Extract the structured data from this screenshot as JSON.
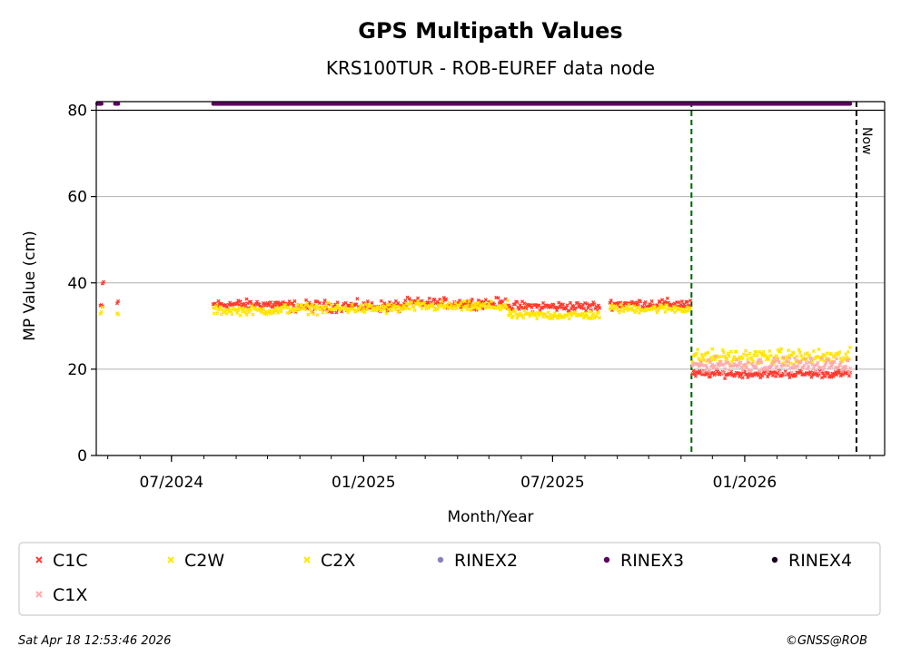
{
  "chart_data": {
    "type": "scatter",
    "title": "GPS Multipath Values",
    "subtitle": "KRS100TUR - ROB-EUREF data node",
    "xlabel": "Month/Year",
    "ylabel": "MP Value (cm)",
    "ylim": [
      0,
      82
    ],
    "xlim": [
      "2024-04-20",
      "2026-05-15"
    ],
    "y_ticks": [
      0,
      20,
      40,
      60,
      80
    ],
    "x_ticks": [
      {
        "date": "2024-07-01",
        "label": "07/2024"
      },
      {
        "date": "2025-01-01",
        "label": "01/2025"
      },
      {
        "date": "2025-07-01",
        "label": "07/2025"
      },
      {
        "date": "2026-01-01",
        "label": "01/2026"
      }
    ],
    "grid": "horizontal",
    "vlines": [
      {
        "date": "2025-11-11",
        "color": "#006400",
        "style": "dashed"
      },
      {
        "date": "2026-04-18",
        "color": "#000000",
        "style": "dashed",
        "label": "Now"
      }
    ],
    "series": [
      {
        "name": "C1C",
        "color": "#ff3b2f",
        "marker": "x",
        "segments": [
          {
            "start": "2024-04-26",
            "end": "2024-04-27",
            "mean": 39.8,
            "noise": 0.3
          },
          {
            "start": "2024-04-24",
            "end": "2024-04-26",
            "mean": 34.5,
            "noise": 0.6
          },
          {
            "start": "2024-05-10",
            "end": "2024-05-11",
            "mean": 35.5,
            "noise": 0.5
          },
          {
            "start": "2024-08-10",
            "end": "2024-10-15",
            "mean": 35.0,
            "noise": 0.7
          },
          {
            "start": "2024-10-15",
            "end": "2025-02-10",
            "mean": 34.6,
            "noise": 0.8
          },
          {
            "start": "2025-02-10",
            "end": "2025-05-20",
            "mean": 35.3,
            "noise": 0.7
          },
          {
            "start": "2025-05-20",
            "end": "2025-08-15",
            "mean": 34.5,
            "noise": 0.7
          },
          {
            "start": "2025-08-25",
            "end": "2025-11-10",
            "mean": 35.1,
            "noise": 0.7
          },
          {
            "start": "2025-11-12",
            "end": "2026-04-12",
            "mean": 18.9,
            "noise": 0.5
          }
        ]
      },
      {
        "name": "C2W",
        "color": "#ffe600",
        "marker": "x",
        "segments": [
          {
            "start": "2024-04-24",
            "end": "2024-04-26",
            "mean": 33.5,
            "noise": 0.8
          },
          {
            "start": "2024-05-10",
            "end": "2024-05-11",
            "mean": 32.8,
            "noise": 0.4
          },
          {
            "start": "2024-08-10",
            "end": "2024-10-15",
            "mean": 33.6,
            "noise": 0.6
          },
          {
            "start": "2024-10-15",
            "end": "2025-02-10",
            "mean": 34.0,
            "noise": 0.7
          },
          {
            "start": "2025-02-10",
            "end": "2025-05-20",
            "mean": 34.5,
            "noise": 0.7
          },
          {
            "start": "2025-05-20",
            "end": "2025-08-15",
            "mean": 32.5,
            "noise": 0.6
          },
          {
            "start": "2025-08-25",
            "end": "2025-11-10",
            "mean": 34.0,
            "noise": 0.6
          }
        ]
      },
      {
        "name": "C2X",
        "color": "#ffe600",
        "marker": "x",
        "segments": [
          {
            "start": "2025-11-12",
            "end": "2026-04-12",
            "mean": 22.8,
            "noise": 1.1
          }
        ]
      },
      {
        "name": "RINEX2",
        "color": "#8c7fc0",
        "marker": "o",
        "segments": []
      },
      {
        "name": "RINEX3",
        "color": "#5e0063",
        "marker": "o",
        "y": 81.5,
        "segments": [
          {
            "start": "2024-04-21",
            "end": "2024-04-25"
          },
          {
            "start": "2024-05-08",
            "end": "2024-05-11"
          },
          {
            "start": "2024-08-10",
            "end": "2024-12-05"
          },
          {
            "start": "2024-12-06",
            "end": "2025-07-18"
          },
          {
            "start": "2025-07-19",
            "end": "2026-03-31"
          },
          {
            "start": "2026-04-01",
            "end": "2026-04-12"
          }
        ]
      },
      {
        "name": "RINEX4",
        "color": "#1a0022",
        "marker": "o",
        "segments": []
      },
      {
        "name": "C1X",
        "color": "#ffaaaa",
        "marker": "x",
        "segments": [
          {
            "start": "2025-11-12",
            "end": "2026-04-12",
            "mean": 21.0,
            "noise": 1.0
          }
        ]
      }
    ]
  },
  "legend": {
    "items": [
      {
        "label": "C1C",
        "color": "#ff3b2f",
        "marker": "x"
      },
      {
        "label": "C2W",
        "color": "#ffe600",
        "marker": "x"
      },
      {
        "label": "C2X",
        "color": "#ffe600",
        "marker": "x"
      },
      {
        "label": "RINEX2",
        "color": "#8c7fc0",
        "marker": "o"
      },
      {
        "label": "RINEX3",
        "color": "#5e0063",
        "marker": "o"
      },
      {
        "label": "RINEX4",
        "color": "#1a0022",
        "marker": "o"
      },
      {
        "label": "C1X",
        "color": "#ffaaaa",
        "marker": "x"
      }
    ]
  },
  "footer": {
    "timestamp": "Sat Apr 18 12:53:46 2026",
    "credit": "©GNSS@ROB"
  },
  "now_label": "Now"
}
